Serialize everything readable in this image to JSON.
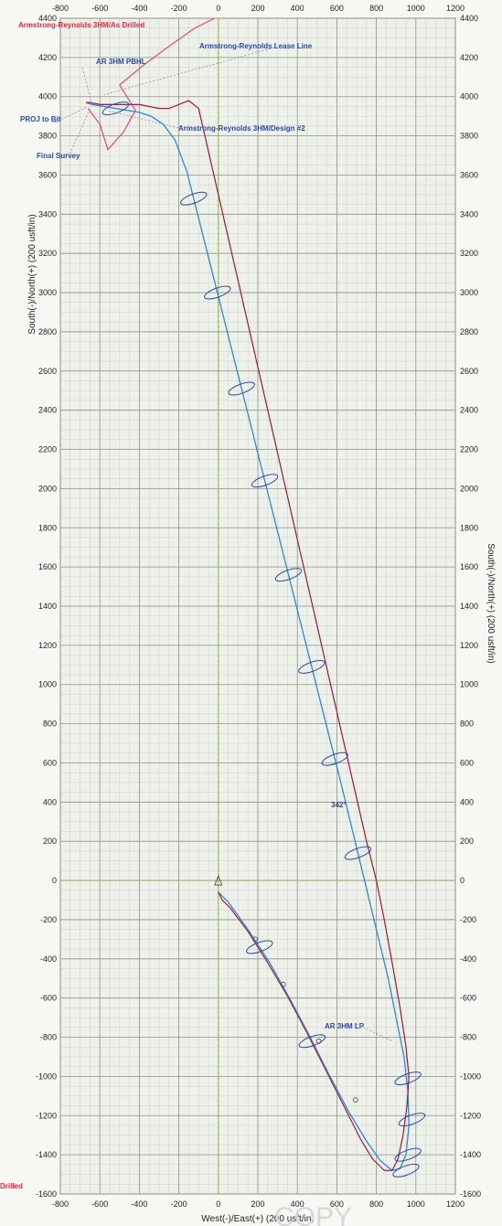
{
  "chart_data": {
    "type": "line",
    "xlabel": "West(-)/East(+) (200 usft/in)",
    "ylabel_left": "South(-)/North(+) (200 usft/in)",
    "ylabel_right": "South(-)/North(+) (200 usft/in)",
    "xlim": [
      -800,
      1200
    ],
    "ylim": [
      -1600,
      4400
    ],
    "x_ticks": [
      "-800",
      "-600",
      "-400",
      "-200",
      "0",
      "200",
      "400",
      "600",
      "800",
      "1000",
      "1200"
    ],
    "y_ticks": [
      "4400",
      "4200",
      "4000",
      "3800",
      "3600",
      "3400",
      "3200",
      "3000",
      "2800",
      "2600",
      "2400",
      "2200",
      "2000",
      "1800",
      "1600",
      "1400",
      "1200",
      "1000",
      "800",
      "600",
      "400",
      "200",
      "0",
      "-200",
      "-400",
      "-600",
      "-800",
      "-1000",
      "-1200",
      "-1400",
      "-1600"
    ],
    "grid": true,
    "series": [
      {
        "name": "Armstrong-Reynolds 3HM/As Drilled",
        "color": "#e8283c",
        "x": [
          0,
          20,
          60,
          150,
          250,
          350,
          450,
          550,
          650,
          720,
          780,
          840,
          880,
          910,
          935,
          955,
          965,
          950,
          920,
          880,
          840,
          800,
          750,
          700,
          650,
          600,
          550,
          500,
          450,
          400,
          350,
          300,
          250,
          200,
          150,
          100,
          50,
          0,
          -50,
          -100,
          -150,
          -200,
          -250,
          -300,
          -350,
          -400,
          -450,
          -500,
          -550,
          -600,
          -650,
          -670
        ],
        "y": [
          -60,
          -100,
          -140,
          -260,
          -420,
          -590,
          -780,
          -980,
          -1180,
          -1320,
          -1420,
          -1480,
          -1480,
          -1420,
          -1300,
          -1150,
          -1000,
          -850,
          -650,
          -420,
          -200,
          0,
          200,
          420,
          640,
          860,
          1080,
          1300,
          1520,
          1740,
          1960,
          2180,
          2400,
          2620,
          2840,
          3060,
          3280,
          3500,
          3720,
          3940,
          3980,
          3960,
          3940,
          3940,
          3950,
          3960,
          3960,
          3960,
          3960,
          3960,
          3970,
          3970
        ]
      },
      {
        "name": "Armstrong-Reynolds 3HM/Design #2",
        "color": "#2a8ad8",
        "x": [
          0,
          50,
          150,
          260,
          360,
          460,
          560,
          660,
          750,
          820,
          880,
          920,
          950,
          965,
          960,
          940,
          900,
          860,
          800,
          740,
          680,
          620,
          560,
          500,
          440,
          380,
          320,
          260,
          200,
          140,
          80,
          20,
          -40,
          -100,
          -160,
          -220,
          -280,
          -340,
          -400,
          -460,
          -520,
          -580,
          -640,
          -670
        ],
        "y": [
          -60,
          -110,
          -250,
          -420,
          -600,
          -790,
          -990,
          -1180,
          -1330,
          -1430,
          -1480,
          -1470,
          -1400,
          -1250,
          -1080,
          -900,
          -700,
          -500,
          -250,
          0,
          250,
          500,
          740,
          980,
          1220,
          1460,
          1700,
          1940,
          2180,
          2420,
          2660,
          2900,
          3140,
          3380,
          3620,
          3780,
          3860,
          3900,
          3920,
          3930,
          3940,
          3950,
          3960,
          3970
        ]
      }
    ],
    "lease_line": {
      "name": "Armstrong-Reynolds Lease Line",
      "color": "#e8447c",
      "x": [
        -660,
        -600,
        -560,
        -480,
        -420,
        -500,
        -380,
        -260,
        -120,
        -20
      ],
      "y": [
        3940,
        3860,
        3730,
        3820,
        3930,
        4060,
        4160,
        4250,
        4350,
        4400
      ]
    },
    "ellipse_y": [
      3940,
      3480,
      3000,
      2510,
      2040,
      1560,
      1090,
      620,
      140,
      -340,
      -820,
      -1010,
      -1220,
      -1400,
      -1480
    ],
    "markers_y": [
      -300,
      -530,
      -820,
      -1120
    ],
    "annotations": [
      {
        "text": "Armstrong-Reynolds 3HM/As Drilled",
        "color": "#e8283c"
      },
      {
        "text": "AR 3HM PBHL",
        "color": "#2a4aa8"
      },
      {
        "text": "Armstrong-Reynolds Lease Line",
        "color": "#2a4aa8"
      },
      {
        "text": "PROJ to Bit",
        "color": "#2a4aa8"
      },
      {
        "text": "Armstrong-Reynolds 3HM/Design #2",
        "color": "#2a4aa8"
      },
      {
        "text": "Final Survey",
        "color": "#2a4aa8"
      },
      {
        "text": "342°",
        "color": "#2a4aa8"
      },
      {
        "text": "AR 3HM LP",
        "color": "#2a4aa8"
      },
      {
        "text": "Drilled",
        "color": "#e8283c"
      }
    ],
    "watermark": "COPY"
  }
}
